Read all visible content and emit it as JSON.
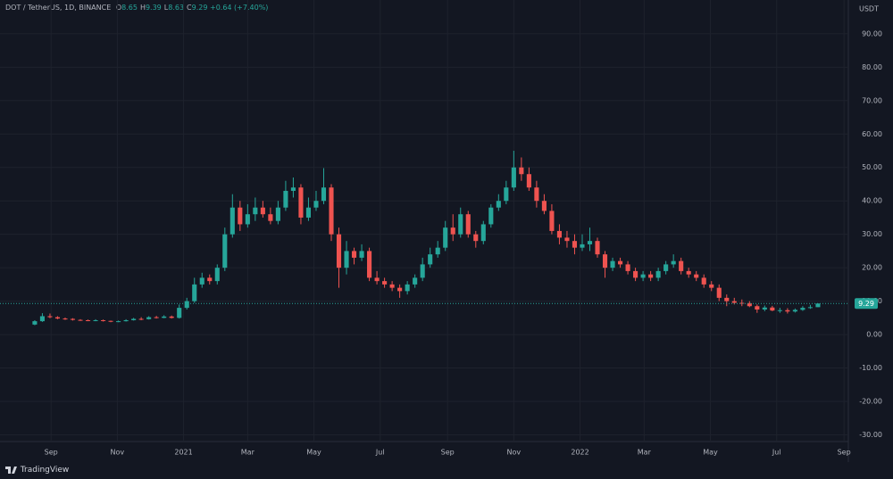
{
  "header": {
    "symbol": "DOT / TetherUS, 1D, BINANCE",
    "ohlc": [
      {
        "label": "O",
        "value": 8.65
      },
      {
        "label": "H",
        "value": 9.39
      },
      {
        "label": "L",
        "value": 8.63
      },
      {
        "label": "C",
        "value": 9.29
      }
    ],
    "change": "+0.64 (+7.40%)"
  },
  "footer": {
    "brand": "TradingView"
  },
  "chart_data": {
    "type": "candlestick",
    "currency": "USDT",
    "up_color": "#26a69a",
    "down_color": "#ef5350",
    "grid": true,
    "price_line": {
      "value": 9.29,
      "label": "9.29"
    },
    "xlim": [
      "2020-07-16",
      "2022-09-05"
    ],
    "xticks": [
      {
        "value": "2020-09-01",
        "label": "Sep"
      },
      {
        "value": "2020-11-01",
        "label": "Nov"
      },
      {
        "value": "2021-01-01",
        "label": "2021"
      },
      {
        "value": "2021-03-01",
        "label": "Mar"
      },
      {
        "value": "2021-05-01",
        "label": "May"
      },
      {
        "value": "2021-07-01",
        "label": "Jul"
      },
      {
        "value": "2021-09-01",
        "label": "Sep"
      },
      {
        "value": "2021-11-01",
        "label": "Nov"
      },
      {
        "value": "2022-01-01",
        "label": "2022"
      },
      {
        "value": "2022-03-01",
        "label": "Mar"
      },
      {
        "value": "2022-05-01",
        "label": "May"
      },
      {
        "value": "2022-07-01",
        "label": "Jul"
      },
      {
        "value": "2022-09-01",
        "label": "Sep"
      }
    ],
    "ylim": [
      -32,
      100.1
    ],
    "yticks": [
      {
        "value": 90,
        "label": "90.00"
      },
      {
        "value": 80,
        "label": "80.00"
      },
      {
        "value": 70,
        "label": "70.00"
      },
      {
        "value": 60,
        "label": "60.00"
      },
      {
        "value": 50,
        "label": "50.00"
      },
      {
        "value": 40,
        "label": "40.00"
      },
      {
        "value": 30,
        "label": "30.00"
      },
      {
        "value": 20,
        "label": "20.00"
      },
      {
        "value": 10,
        "label": "10.00"
      },
      {
        "value": 0,
        "label": "0.00"
      },
      {
        "value": -10,
        "label": "-10.00"
      },
      {
        "value": -20,
        "label": "-20.00"
      },
      {
        "value": -30,
        "label": "-30.00"
      }
    ],
    "x": [
      "2020-08-17",
      "2020-08-24",
      "2020-08-31",
      "2020-09-07",
      "2020-09-14",
      "2020-09-21",
      "2020-09-28",
      "2020-10-05",
      "2020-10-12",
      "2020-10-19",
      "2020-10-26",
      "2020-11-02",
      "2020-11-09",
      "2020-11-16",
      "2020-11-23",
      "2020-11-30",
      "2020-12-07",
      "2020-12-14",
      "2020-12-21",
      "2020-12-28",
      "2021-01-04",
      "2021-01-11",
      "2021-01-18",
      "2021-01-25",
      "2021-02-01",
      "2021-02-08",
      "2021-02-15",
      "2021-02-22",
      "2021-03-01",
      "2021-03-08",
      "2021-03-15",
      "2021-03-22",
      "2021-03-29",
      "2021-04-05",
      "2021-04-12",
      "2021-04-19",
      "2021-04-26",
      "2021-05-03",
      "2021-05-10",
      "2021-05-17",
      "2021-05-24",
      "2021-05-31",
      "2021-06-07",
      "2021-06-14",
      "2021-06-21",
      "2021-06-28",
      "2021-07-05",
      "2021-07-12",
      "2021-07-19",
      "2021-07-26",
      "2021-08-02",
      "2021-08-09",
      "2021-08-16",
      "2021-08-23",
      "2021-08-30",
      "2021-09-06",
      "2021-09-13",
      "2021-09-20",
      "2021-09-27",
      "2021-10-04",
      "2021-10-11",
      "2021-10-18",
      "2021-10-25",
      "2021-11-01",
      "2021-11-08",
      "2021-11-15",
      "2021-11-22",
      "2021-11-29",
      "2021-12-06",
      "2021-12-13",
      "2021-12-20",
      "2021-12-27",
      "2022-01-03",
      "2022-01-10",
      "2022-01-17",
      "2022-01-24",
      "2022-01-31",
      "2022-02-07",
      "2022-02-14",
      "2022-02-21",
      "2022-02-28",
      "2022-03-07",
      "2022-03-14",
      "2022-03-21",
      "2022-03-28",
      "2022-04-04",
      "2022-04-11",
      "2022-04-18",
      "2022-04-25",
      "2022-05-02",
      "2022-05-09",
      "2022-05-16",
      "2022-05-23",
      "2022-05-30",
      "2022-06-06",
      "2022-06-13",
      "2022-06-20",
      "2022-06-27",
      "2022-07-04",
      "2022-07-11",
      "2022-07-18",
      "2022-07-25",
      "2022-08-01",
      "2022-08-08"
    ],
    "open": [
      3.0,
      4.0,
      5.5,
      5.2,
      4.8,
      4.7,
      4.4,
      4.3,
      4.2,
      4.3,
      4.1,
      3.9,
      4.0,
      4.3,
      4.7,
      4.6,
      5.2,
      5.0,
      5.4,
      5.0,
      8.0,
      10,
      15,
      17,
      16,
      20,
      30,
      38,
      33,
      36,
      38,
      36,
      34,
      38,
      43,
      44,
      35,
      38,
      40,
      44,
      30,
      20,
      25,
      23,
      25,
      17,
      16,
      15,
      14,
      13,
      15,
      17,
      21,
      24,
      26,
      32,
      30,
      36,
      30,
      28,
      33,
      38,
      40,
      44,
      50,
      48,
      44,
      40,
      37,
      31,
      29,
      28,
      26,
      27,
      28,
      24,
      20,
      22,
      21,
      19,
      17,
      18,
      17,
      19,
      21,
      22,
      19,
      18,
      17,
      15,
      14,
      11,
      10,
      9.5,
      9.4,
      8.5,
      7.5,
      8.1,
      7.2,
      7.3,
      6.9,
      7.4,
      8.0,
      8.2
    ],
    "high": [
      4.3,
      6.4,
      6.3,
      5.5,
      5.1,
      4.9,
      4.6,
      4.5,
      4.6,
      4.5,
      4.2,
      4.2,
      4.6,
      5.0,
      5.2,
      5.5,
      5.6,
      5.8,
      5.7,
      9.0,
      11,
      17,
      18.5,
      18,
      21,
      32,
      42,
      40,
      39,
      41,
      40,
      38,
      40,
      46,
      47,
      45,
      41,
      43,
      49.8,
      45,
      32,
      28,
      26,
      27,
      26,
      19,
      17,
      16,
      15,
      16,
      18,
      23,
      26,
      28,
      34,
      36,
      38,
      37,
      31,
      34,
      39,
      42,
      46,
      55,
      53,
      50,
      46,
      42,
      39,
      33,
      31,
      30,
      30,
      32,
      29,
      25,
      23,
      23,
      22,
      20,
      19,
      19,
      20,
      22,
      24,
      23,
      20,
      19,
      18,
      16,
      15,
      12,
      11,
      10.5,
      10,
      9,
      8.7,
      8.6,
      8,
      7.9,
      7.8,
      8.5,
      8.9,
      9.39
    ],
    "low": [
      2.8,
      3.8,
      4.9,
      4.6,
      4.4,
      4.2,
      4.1,
      4.0,
      4.0,
      3.9,
      3.7,
      3.7,
      3.9,
      4.2,
      4.3,
      4.5,
      4.8,
      4.9,
      4.8,
      4.8,
      7.5,
      9.5,
      14,
      15,
      15,
      19,
      29,
      31,
      32,
      34,
      35,
      33,
      33,
      37,
      41,
      33,
      34,
      37,
      39,
      28,
      14,
      18,
      21,
      22,
      16,
      15,
      14,
      13,
      11,
      12,
      14,
      16,
      20,
      23,
      25,
      28,
      29,
      29,
      26,
      27,
      32,
      37,
      39,
      43,
      46,
      43,
      38,
      36,
      30,
      27,
      26,
      24,
      25,
      25,
      23,
      17,
      19,
      20,
      18,
      16,
      16,
      16,
      16,
      18,
      20,
      18,
      17,
      16,
      14,
      13,
      10,
      8.5,
      9,
      8.5,
      8.2,
      6.5,
      7,
      7,
      6.5,
      6.3,
      6.6,
      7.1,
      7.7,
      8.2
    ],
    "close": [
      4.0,
      5.5,
      5.2,
      4.8,
      4.7,
      4.4,
      4.3,
      4.2,
      4.3,
      4.1,
      3.9,
      4.0,
      4.3,
      4.7,
      4.6,
      5.2,
      5.0,
      5.4,
      5.0,
      8.0,
      10,
      15,
      17,
      16,
      20,
      30,
      38,
      33,
      36,
      38,
      36,
      34,
      38,
      43,
      44,
      35,
      38,
      40,
      44,
      30,
      20,
      25,
      23,
      25,
      17,
      16,
      15,
      14,
      13,
      15,
      17,
      21,
      24,
      26,
      32,
      30,
      36,
      30,
      28,
      33,
      38,
      40,
      44,
      50,
      48,
      44,
      40,
      37,
      31,
      29,
      28,
      26,
      27,
      28,
      24,
      20,
      22,
      21,
      19,
      17,
      18,
      17,
      19,
      21,
      22,
      19,
      18,
      17,
      15,
      14,
      11,
      10,
      9.5,
      9.4,
      8.5,
      7.5,
      8.1,
      7.2,
      7.3,
      6.9,
      7.4,
      8.0,
      8.2,
      9.29
    ]
  }
}
